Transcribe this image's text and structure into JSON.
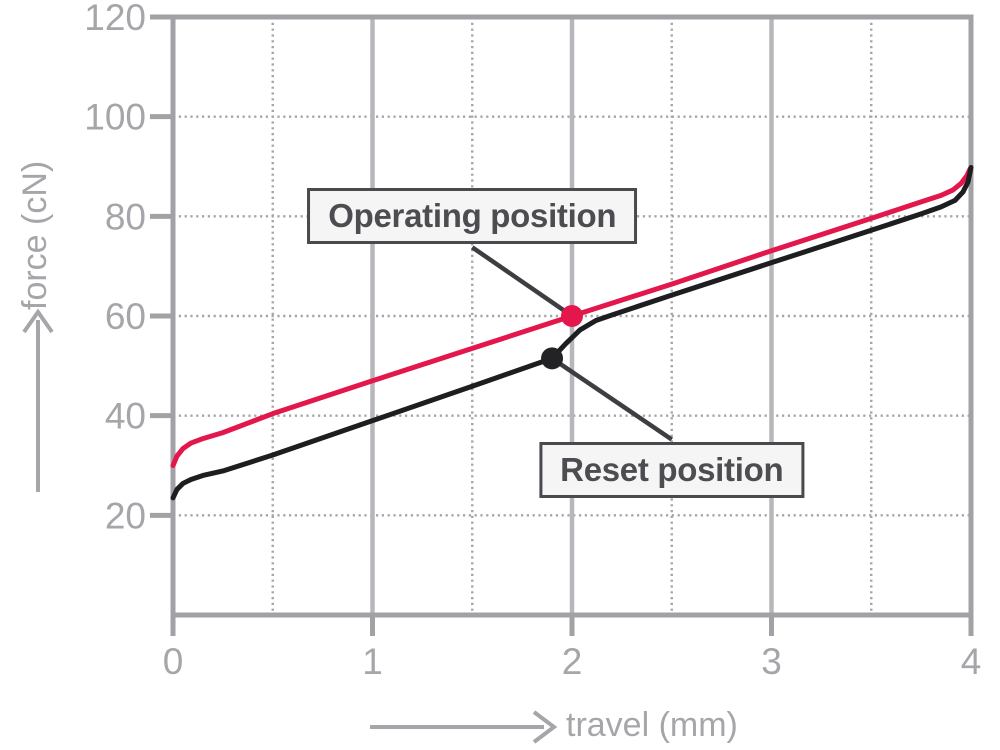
{
  "chart_data": {
    "type": "line",
    "title": "",
    "xlabel": "travel (mm)",
    "ylabel": "force (cN)",
    "xlim": [
      0,
      4
    ],
    "ylim": [
      0,
      120
    ],
    "x_ticks": [
      0,
      1,
      2,
      3,
      4
    ],
    "y_ticks": [
      20,
      40,
      60,
      80,
      100,
      120
    ],
    "x_minor_dotted": [
      0.5,
      1.5,
      2.5,
      3.5
    ],
    "y_dotted": [
      20,
      40,
      60,
      80,
      100
    ],
    "grid": "on",
    "legend": "none",
    "series": [
      {
        "name": "press-curve",
        "color": "#e3174b",
        "points": [
          [
            0,
            30
          ],
          [
            0.02,
            31.9
          ],
          [
            0.05,
            33.4
          ],
          [
            0.09,
            34.5
          ],
          [
            0.15,
            35.4
          ],
          [
            0.25,
            36.6
          ],
          [
            0.5,
            40.4
          ],
          [
            1,
            47
          ],
          [
            1.5,
            53.5
          ],
          [
            2,
            60
          ],
          [
            2.5,
            66.4
          ],
          [
            3,
            73.1
          ],
          [
            3.5,
            79.6
          ],
          [
            3.75,
            82.9
          ],
          [
            3.85,
            84.2
          ],
          [
            3.91,
            85.3
          ],
          [
            3.95,
            86.6
          ],
          [
            3.98,
            88.2
          ],
          [
            3.995,
            89.5
          ]
        ]
      },
      {
        "name": "release-curve",
        "color": "#1e1e20",
        "points": [
          [
            0,
            23.5
          ],
          [
            0.02,
            25.2
          ],
          [
            0.05,
            26.4
          ],
          [
            0.09,
            27.2
          ],
          [
            0.15,
            28.0
          ],
          [
            0.25,
            28.9
          ],
          [
            0.5,
            32.1
          ],
          [
            1,
            39
          ],
          [
            1.5,
            45.9
          ],
          [
            1.9,
            51.5
          ],
          [
            1.97,
            54.5
          ],
          [
            2.04,
            57.2
          ],
          [
            2.12,
            59.1
          ],
          [
            2.2,
            60.2
          ],
          [
            2.5,
            64.2
          ],
          [
            3,
            70.7
          ],
          [
            3.5,
            77.2
          ],
          [
            3.75,
            80.5
          ],
          [
            3.85,
            81.9
          ],
          [
            3.92,
            83.2
          ],
          [
            3.96,
            84.9
          ],
          [
            3.985,
            86.9
          ],
          [
            4,
            89.8
          ]
        ]
      }
    ],
    "markers": [
      {
        "name": "operating-point",
        "x": 2.0,
        "y": 60,
        "color": "#e3174b"
      },
      {
        "name": "reset-point",
        "x": 1.9,
        "y": 51.5,
        "color": "#232325"
      }
    ],
    "annotations": [
      {
        "text": "Operating position",
        "box_x": 1.5,
        "box_y": 80
      },
      {
        "text": "Reset position",
        "box_x": 2.5,
        "box_y": 29
      }
    ]
  },
  "colors": {
    "axis": "#a2a2a6",
    "inner_grid": "#b7b7bb",
    "dotted_grid": "#a5a5a9",
    "tick_label": "#a6a6aa",
    "axis_title": "#a6a6aa",
    "leader": "#3e3e42",
    "callout_bg": "#f5f5f6",
    "callout_border": "#4a4a4e",
    "callout_text": "#4d4d51",
    "press_curve": "#e3174b",
    "release_curve": "#1e1e20"
  }
}
